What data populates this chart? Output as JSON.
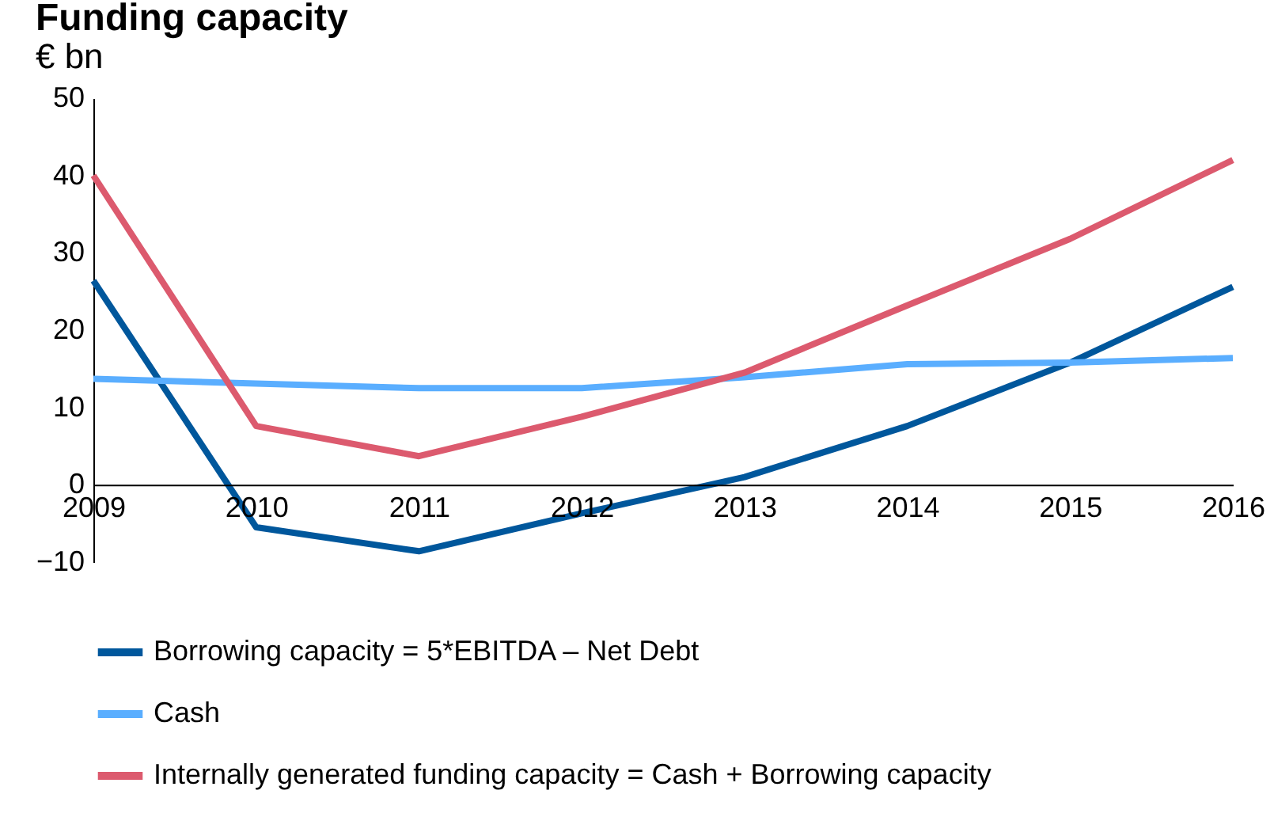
{
  "chart_data": {
    "type": "line",
    "title": "Funding capacity",
    "subtitle": "€ bn",
    "categories": [
      "2009",
      "2010",
      "2011",
      "2012",
      "2013",
      "2014",
      "2015",
      "2016"
    ],
    "series": [
      {
        "name": "Borrowing capacity = 5*EBITDA – Net Debt",
        "color": "#00579c",
        "values": [
          26.4,
          -5.5,
          -8.6,
          -3.7,
          1,
          7.6,
          15.8,
          25.6
        ]
      },
      {
        "name": "Cash",
        "color": "#5aaeff",
        "values": [
          13.7,
          13.1,
          12.5,
          12.5,
          13.9,
          15.6,
          15.8,
          16.4
        ]
      },
      {
        "name": "Internally generated funding capacity = Cash + Borrowing capacity",
        "color": "#dc5a6e",
        "values": [
          40,
          7.6,
          3.7,
          8.8,
          14.5,
          23.2,
          31.8,
          42
        ]
      }
    ],
    "ylim": [
      -10,
      50
    ],
    "yticks": [
      -10,
      0,
      10,
      20,
      30,
      40,
      50
    ],
    "grid": false,
    "legend": "bottom",
    "line_style": "solid"
  }
}
